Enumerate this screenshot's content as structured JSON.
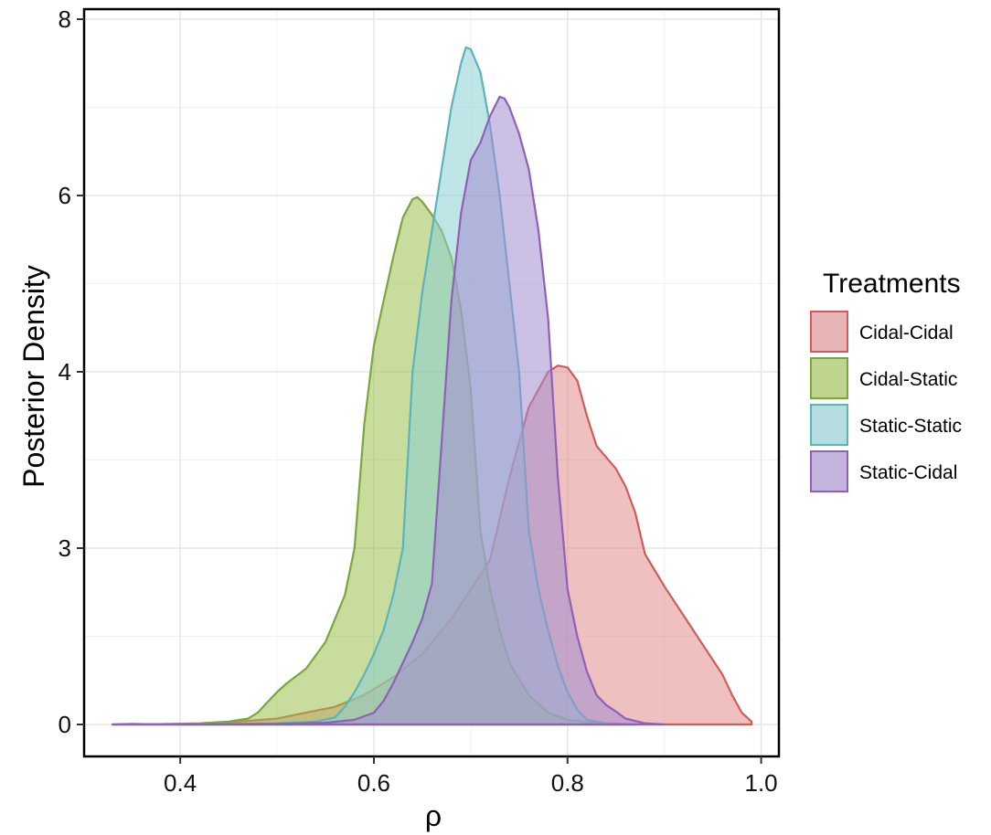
{
  "chart_data": {
    "type": "area",
    "xlabel": "ρ",
    "ylabel": "Posterior Density",
    "xlim": [
      0.3,
      1.0
    ],
    "x_ticks": [
      0.4,
      0.6,
      0.8,
      1.0
    ],
    "x_tick_labels": [
      "0.4",
      "0.6",
      "0.8",
      "1.0"
    ],
    "y_ticks": [
      0,
      3,
      4,
      6,
      8
    ],
    "y_tick_labels": [
      "0",
      "3",
      "4",
      "6",
      "8"
    ],
    "grid": true,
    "legend": {
      "title": "Treatments",
      "placement": "right",
      "entries": [
        "Cidal-Cidal",
        "Cidal-Static",
        "Static-Static",
        "Static-Cidal"
      ]
    },
    "series": [
      {
        "name": "Cidal-Cidal",
        "fill": "#e08c8c",
        "stroke": "#d25a5a",
        "points": [
          [
            0.33,
            0
          ],
          [
            0.35,
            0.01
          ],
          [
            0.38,
            0
          ],
          [
            0.42,
            0.01
          ],
          [
            0.46,
            0.05
          ],
          [
            0.5,
            0.1
          ],
          [
            0.53,
            0.2
          ],
          [
            0.56,
            0.3
          ],
          [
            0.59,
            0.5
          ],
          [
            0.62,
            0.8
          ],
          [
            0.65,
            1.2
          ],
          [
            0.68,
            1.8
          ],
          [
            0.7,
            2.3
          ],
          [
            0.72,
            2.8
          ],
          [
            0.74,
            3.4
          ],
          [
            0.76,
            3.8
          ],
          [
            0.78,
            4.0
          ],
          [
            0.79,
            4.07
          ],
          [
            0.8,
            4.05
          ],
          [
            0.81,
            3.95
          ],
          [
            0.82,
            3.75
          ],
          [
            0.83,
            3.58
          ],
          [
            0.85,
            3.45
          ],
          [
            0.86,
            3.35
          ],
          [
            0.87,
            3.2
          ],
          [
            0.88,
            2.9
          ],
          [
            0.9,
            2.35
          ],
          [
            0.92,
            1.85
          ],
          [
            0.94,
            1.35
          ],
          [
            0.96,
            0.85
          ],
          [
            0.97,
            0.5
          ],
          [
            0.98,
            0.2
          ],
          [
            0.99,
            0.05
          ],
          [
            0.99,
            0
          ]
        ]
      },
      {
        "name": "Cidal-Static",
        "fill": "#9bbf4d",
        "stroke": "#7aa63a",
        "points": [
          [
            0.33,
            0
          ],
          [
            0.36,
            0
          ],
          [
            0.39,
            0.01
          ],
          [
            0.42,
            0.02
          ],
          [
            0.45,
            0.05
          ],
          [
            0.47,
            0.1
          ],
          [
            0.48,
            0.2
          ],
          [
            0.49,
            0.38
          ],
          [
            0.5,
            0.55
          ],
          [
            0.51,
            0.7
          ],
          [
            0.53,
            0.95
          ],
          [
            0.55,
            1.4
          ],
          [
            0.57,
            2.2
          ],
          [
            0.58,
            3.0
          ],
          [
            0.59,
            3.7
          ],
          [
            0.6,
            4.3
          ],
          [
            0.61,
            4.8
          ],
          [
            0.62,
            5.3
          ],
          [
            0.63,
            5.75
          ],
          [
            0.64,
            5.96
          ],
          [
            0.645,
            5.98
          ],
          [
            0.65,
            5.93
          ],
          [
            0.66,
            5.78
          ],
          [
            0.67,
            5.6
          ],
          [
            0.68,
            5.3
          ],
          [
            0.69,
            4.7
          ],
          [
            0.7,
            3.9
          ],
          [
            0.71,
            3.1
          ],
          [
            0.72,
            2.3
          ],
          [
            0.73,
            1.6
          ],
          [
            0.74,
            1.05
          ],
          [
            0.76,
            0.5
          ],
          [
            0.78,
            0.2
          ],
          [
            0.8,
            0.08
          ],
          [
            0.83,
            0.02
          ],
          [
            0.86,
            0
          ]
        ]
      },
      {
        "name": "Static-Static",
        "fill": "#8ccfd2",
        "stroke": "#5ab4be",
        "points": [
          [
            0.4,
            0
          ],
          [
            0.45,
            0.01
          ],
          [
            0.5,
            0.02
          ],
          [
            0.54,
            0.05
          ],
          [
            0.56,
            0.12
          ],
          [
            0.57,
            0.3
          ],
          [
            0.58,
            0.55
          ],
          [
            0.59,
            0.85
          ],
          [
            0.6,
            1.2
          ],
          [
            0.61,
            1.6
          ],
          [
            0.62,
            2.2
          ],
          [
            0.63,
            3.0
          ],
          [
            0.64,
            4.0
          ],
          [
            0.65,
            4.9
          ],
          [
            0.66,
            5.6
          ],
          [
            0.67,
            6.3
          ],
          [
            0.68,
            7.0
          ],
          [
            0.69,
            7.5
          ],
          [
            0.695,
            7.68
          ],
          [
            0.7,
            7.66
          ],
          [
            0.71,
            7.4
          ],
          [
            0.72,
            6.8
          ],
          [
            0.73,
            6.0
          ],
          [
            0.74,
            5.0
          ],
          [
            0.75,
            4.0
          ],
          [
            0.76,
            3.1
          ],
          [
            0.77,
            2.3
          ],
          [
            0.78,
            1.6
          ],
          [
            0.79,
            1.0
          ],
          [
            0.8,
            0.55
          ],
          [
            0.81,
            0.25
          ],
          [
            0.82,
            0.08
          ],
          [
            0.84,
            0.02
          ],
          [
            0.87,
            0
          ]
        ]
      },
      {
        "name": "Static-Cidal",
        "fill": "#a48cd0",
        "stroke": "#9060b8",
        "points": [
          [
            0.33,
            0
          ],
          [
            0.4,
            0
          ],
          [
            0.5,
            0.01
          ],
          [
            0.55,
            0.03
          ],
          [
            0.58,
            0.08
          ],
          [
            0.6,
            0.2
          ],
          [
            0.61,
            0.4
          ],
          [
            0.62,
            0.7
          ],
          [
            0.63,
            1.05
          ],
          [
            0.64,
            1.4
          ],
          [
            0.65,
            1.8
          ],
          [
            0.66,
            2.4
          ],
          [
            0.67,
            3.6
          ],
          [
            0.68,
            4.8
          ],
          [
            0.69,
            5.8
          ],
          [
            0.7,
            6.4
          ],
          [
            0.71,
            6.6
          ],
          [
            0.72,
            6.9
          ],
          [
            0.73,
            7.12
          ],
          [
            0.735,
            7.1
          ],
          [
            0.74,
            7.0
          ],
          [
            0.75,
            6.7
          ],
          [
            0.76,
            6.3
          ],
          [
            0.77,
            5.6
          ],
          [
            0.78,
            4.6
          ],
          [
            0.79,
            3.4
          ],
          [
            0.8,
            2.3
          ],
          [
            0.81,
            1.5
          ],
          [
            0.82,
            0.9
          ],
          [
            0.83,
            0.5
          ],
          [
            0.84,
            0.33
          ],
          [
            0.85,
            0.22
          ],
          [
            0.86,
            0.1
          ],
          [
            0.88,
            0.02
          ],
          [
            0.9,
            0
          ]
        ]
      }
    ]
  }
}
